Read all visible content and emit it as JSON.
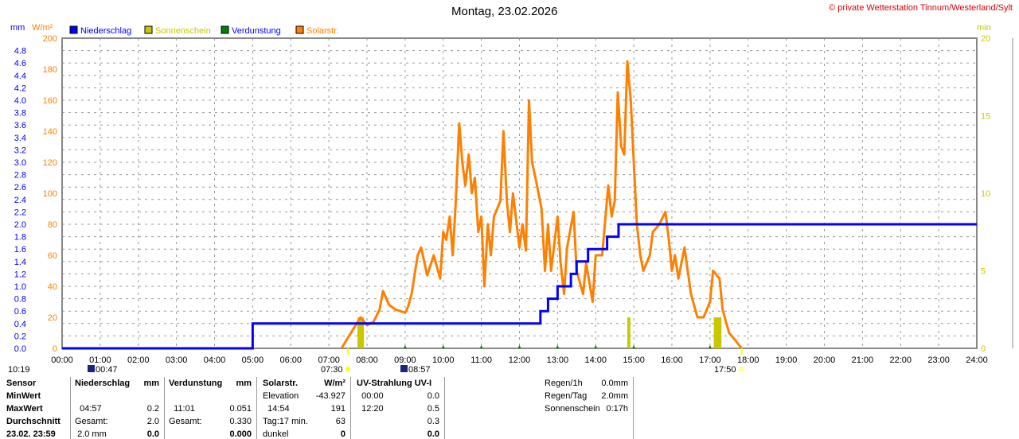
{
  "chart_data": {
    "type": "line",
    "title": "Montag, 23.02.2026",
    "copyright": "© private Wetterstation Tinnum/Westerland/Sylt",
    "left_units": [
      "mm",
      "W/m²"
    ],
    "right_unit": "min",
    "legend": [
      {
        "name": "Niederschlag",
        "color": "#0000ff"
      },
      {
        "name": "Sonnenschein",
        "color": "#c8c800"
      },
      {
        "name": "Verdunstung",
        "color": "#008000"
      },
      {
        "name": "Solarstr.",
        "color": "#ff8000"
      }
    ],
    "xlim": [
      0,
      24
    ],
    "x_ticks": [
      "00:00",
      "01:00",
      "02:00",
      "03:00",
      "04:00",
      "05:00",
      "06:00",
      "07:00",
      "08:00",
      "09:00",
      "10:00",
      "11:00",
      "12:00",
      "13:00",
      "14:00",
      "15:00",
      "16:00",
      "17:00",
      "18:00",
      "19:00",
      "20:00",
      "21:00",
      "22:00",
      "23:00",
      "24:00"
    ],
    "ylim_wm2": [
      0,
      200
    ],
    "ylim_mm": [
      0,
      5
    ],
    "ylim_min": [
      0,
      20
    ],
    "y_ticks_wm2": [
      0,
      20,
      40,
      60,
      80,
      100,
      120,
      140,
      160,
      180,
      200
    ],
    "y_ticks_mm": [
      "0.0",
      "0.2",
      "0.4",
      "0.6",
      "0.8",
      "1.0",
      "1.2",
      "1.4",
      "1.6",
      "1.8",
      "2.0",
      "2.2",
      "2.4",
      "2.6",
      "2.8",
      "3.0",
      "3.2",
      "3.4",
      "3.6",
      "3.8",
      "4.0",
      "4.2",
      "4.4",
      "4.6",
      "4.8"
    ],
    "y_ticks_min": [
      0,
      5,
      10,
      15,
      20
    ],
    "series": [
      {
        "name": "Niederschlag",
        "unit": "mm",
        "x": [
          0,
          4.9,
          5.0,
          12.5,
          12.55,
          12.75,
          13.0,
          13.35,
          13.5,
          13.8,
          14.3,
          14.6,
          24
        ],
        "values": [
          0,
          0,
          0.4,
          0.4,
          0.6,
          0.8,
          1.0,
          1.2,
          1.4,
          1.6,
          1.8,
          2.0,
          2.0
        ]
      },
      {
        "name": "Solarstr.",
        "unit": "W/m²",
        "x": [
          7.33,
          7.58,
          7.83,
          8,
          8.17,
          8.33,
          8.42,
          8.58,
          8.75,
          9,
          9.08,
          9.17,
          9.33,
          9.42,
          9.58,
          9.75,
          9.92,
          10,
          10.08,
          10.17,
          10.25,
          10.33,
          10.42,
          10.5,
          10.58,
          10.67,
          10.75,
          10.83,
          10.92,
          11,
          11.08,
          11.17,
          11.25,
          11.33,
          11.5,
          11.58,
          11.67,
          11.75,
          11.83,
          12,
          12.08,
          12.17,
          12.25,
          12.33,
          12.42,
          12.5,
          12.58,
          12.67,
          12.75,
          12.83,
          13,
          13.08,
          13.17,
          13.25,
          13.42,
          13.5,
          13.67,
          13.75,
          13.92,
          14,
          14.17,
          14.33,
          14.42,
          14.5,
          14.58,
          14.67,
          14.75,
          14.83,
          14.92,
          15,
          15.08,
          15.17,
          15.25,
          15.42,
          15.5,
          15.67,
          15.83,
          15.92,
          16,
          16.08,
          16.17,
          16.33,
          16.5,
          16.67,
          16.83,
          17,
          17.08,
          17.25,
          17.33,
          17.5,
          17.67,
          17.83
        ],
        "values": [
          0,
          10,
          20,
          15,
          17,
          25,
          37,
          28,
          25,
          23,
          27,
          35,
          60,
          65,
          47,
          60,
          45,
          75,
          70,
          85,
          60,
          95,
          145,
          120,
          105,
          125,
          100,
          110,
          75,
          85,
          40,
          80,
          60,
          85,
          95,
          140,
          95,
          75,
          100,
          65,
          80,
          63,
          160,
          120,
          110,
          100,
          90,
          50,
          80,
          50,
          85,
          55,
          35,
          65,
          88,
          50,
          35,
          55,
          30,
          60,
          60,
          105,
          85,
          95,
          165,
          130,
          125,
          185,
          160,
          120,
          80,
          60,
          50,
          60,
          75,
          80,
          88,
          70,
          50,
          60,
          45,
          65,
          35,
          20,
          20,
          30,
          50,
          45,
          25,
          10,
          5,
          0
        ]
      },
      {
        "name": "Sonnenschein",
        "unit": "min",
        "x": [
          7.75,
          14.83,
          17.1
        ],
        "widths_h": [
          0.17,
          0.08,
          0.2
        ],
        "values": [
          2,
          2,
          2
        ]
      },
      {
        "name": "Verdunstung",
        "unit": "mm",
        "x": [
          9,
          10,
          11,
          12,
          13,
          14,
          15,
          17
        ],
        "values": [
          0.01,
          0.01,
          0.02,
          0.01,
          0.01,
          0.01,
          0.01,
          0.01
        ]
      }
    ],
    "markers": {
      "moonset": "00:47",
      "sunrise": "07:30",
      "moonrise": "08:57",
      "sunset": "17:50",
      "left_time": "10:19"
    }
  },
  "table": {
    "rows": [
      "Sensor",
      "MinWert",
      "MaxWert",
      "Durchschnitt",
      "23.02. 23:59"
    ],
    "nied": {
      "h": "Niederschlag",
      "u": "mm",
      "max_t": "04:57",
      "max_v": "0.2",
      "g": "Gesamt:",
      "g_v": "2.0",
      "last_l": "2.0 mm",
      "last_v": "0.0"
    },
    "verd": {
      "h": "Verdunstung",
      "u": "mm",
      "max_t": "11:01",
      "max_v": "0.051",
      "g": "Gesamt:",
      "g_v": "0.330",
      "last_v": "0.000"
    },
    "sol": {
      "h": "Solarstr.",
      "u": "W/m²",
      "min_l": "Elevation",
      "min_v": "-43.927",
      "max_t": "14:54",
      "max_v": "191",
      "avg_l": "Tag:17 min.",
      "avg_v": "63",
      "last_l": "dunkel",
      "last_v": "0"
    },
    "uv": {
      "h": "UV-Strahlung UV-I",
      "min_t": "00:00",
      "min_v": "0.0",
      "max_t": "12:20",
      "max_v": "0.5",
      "avg_v": "0.3",
      "last_v": "0.0"
    },
    "summary": [
      {
        "l": "Regen/1h",
        "v": "0.0mm"
      },
      {
        "l": "Regen/Tag",
        "v": "2.0mm"
      },
      {
        "l": "Sonnenschein",
        "v": "0:17h"
      }
    ]
  }
}
